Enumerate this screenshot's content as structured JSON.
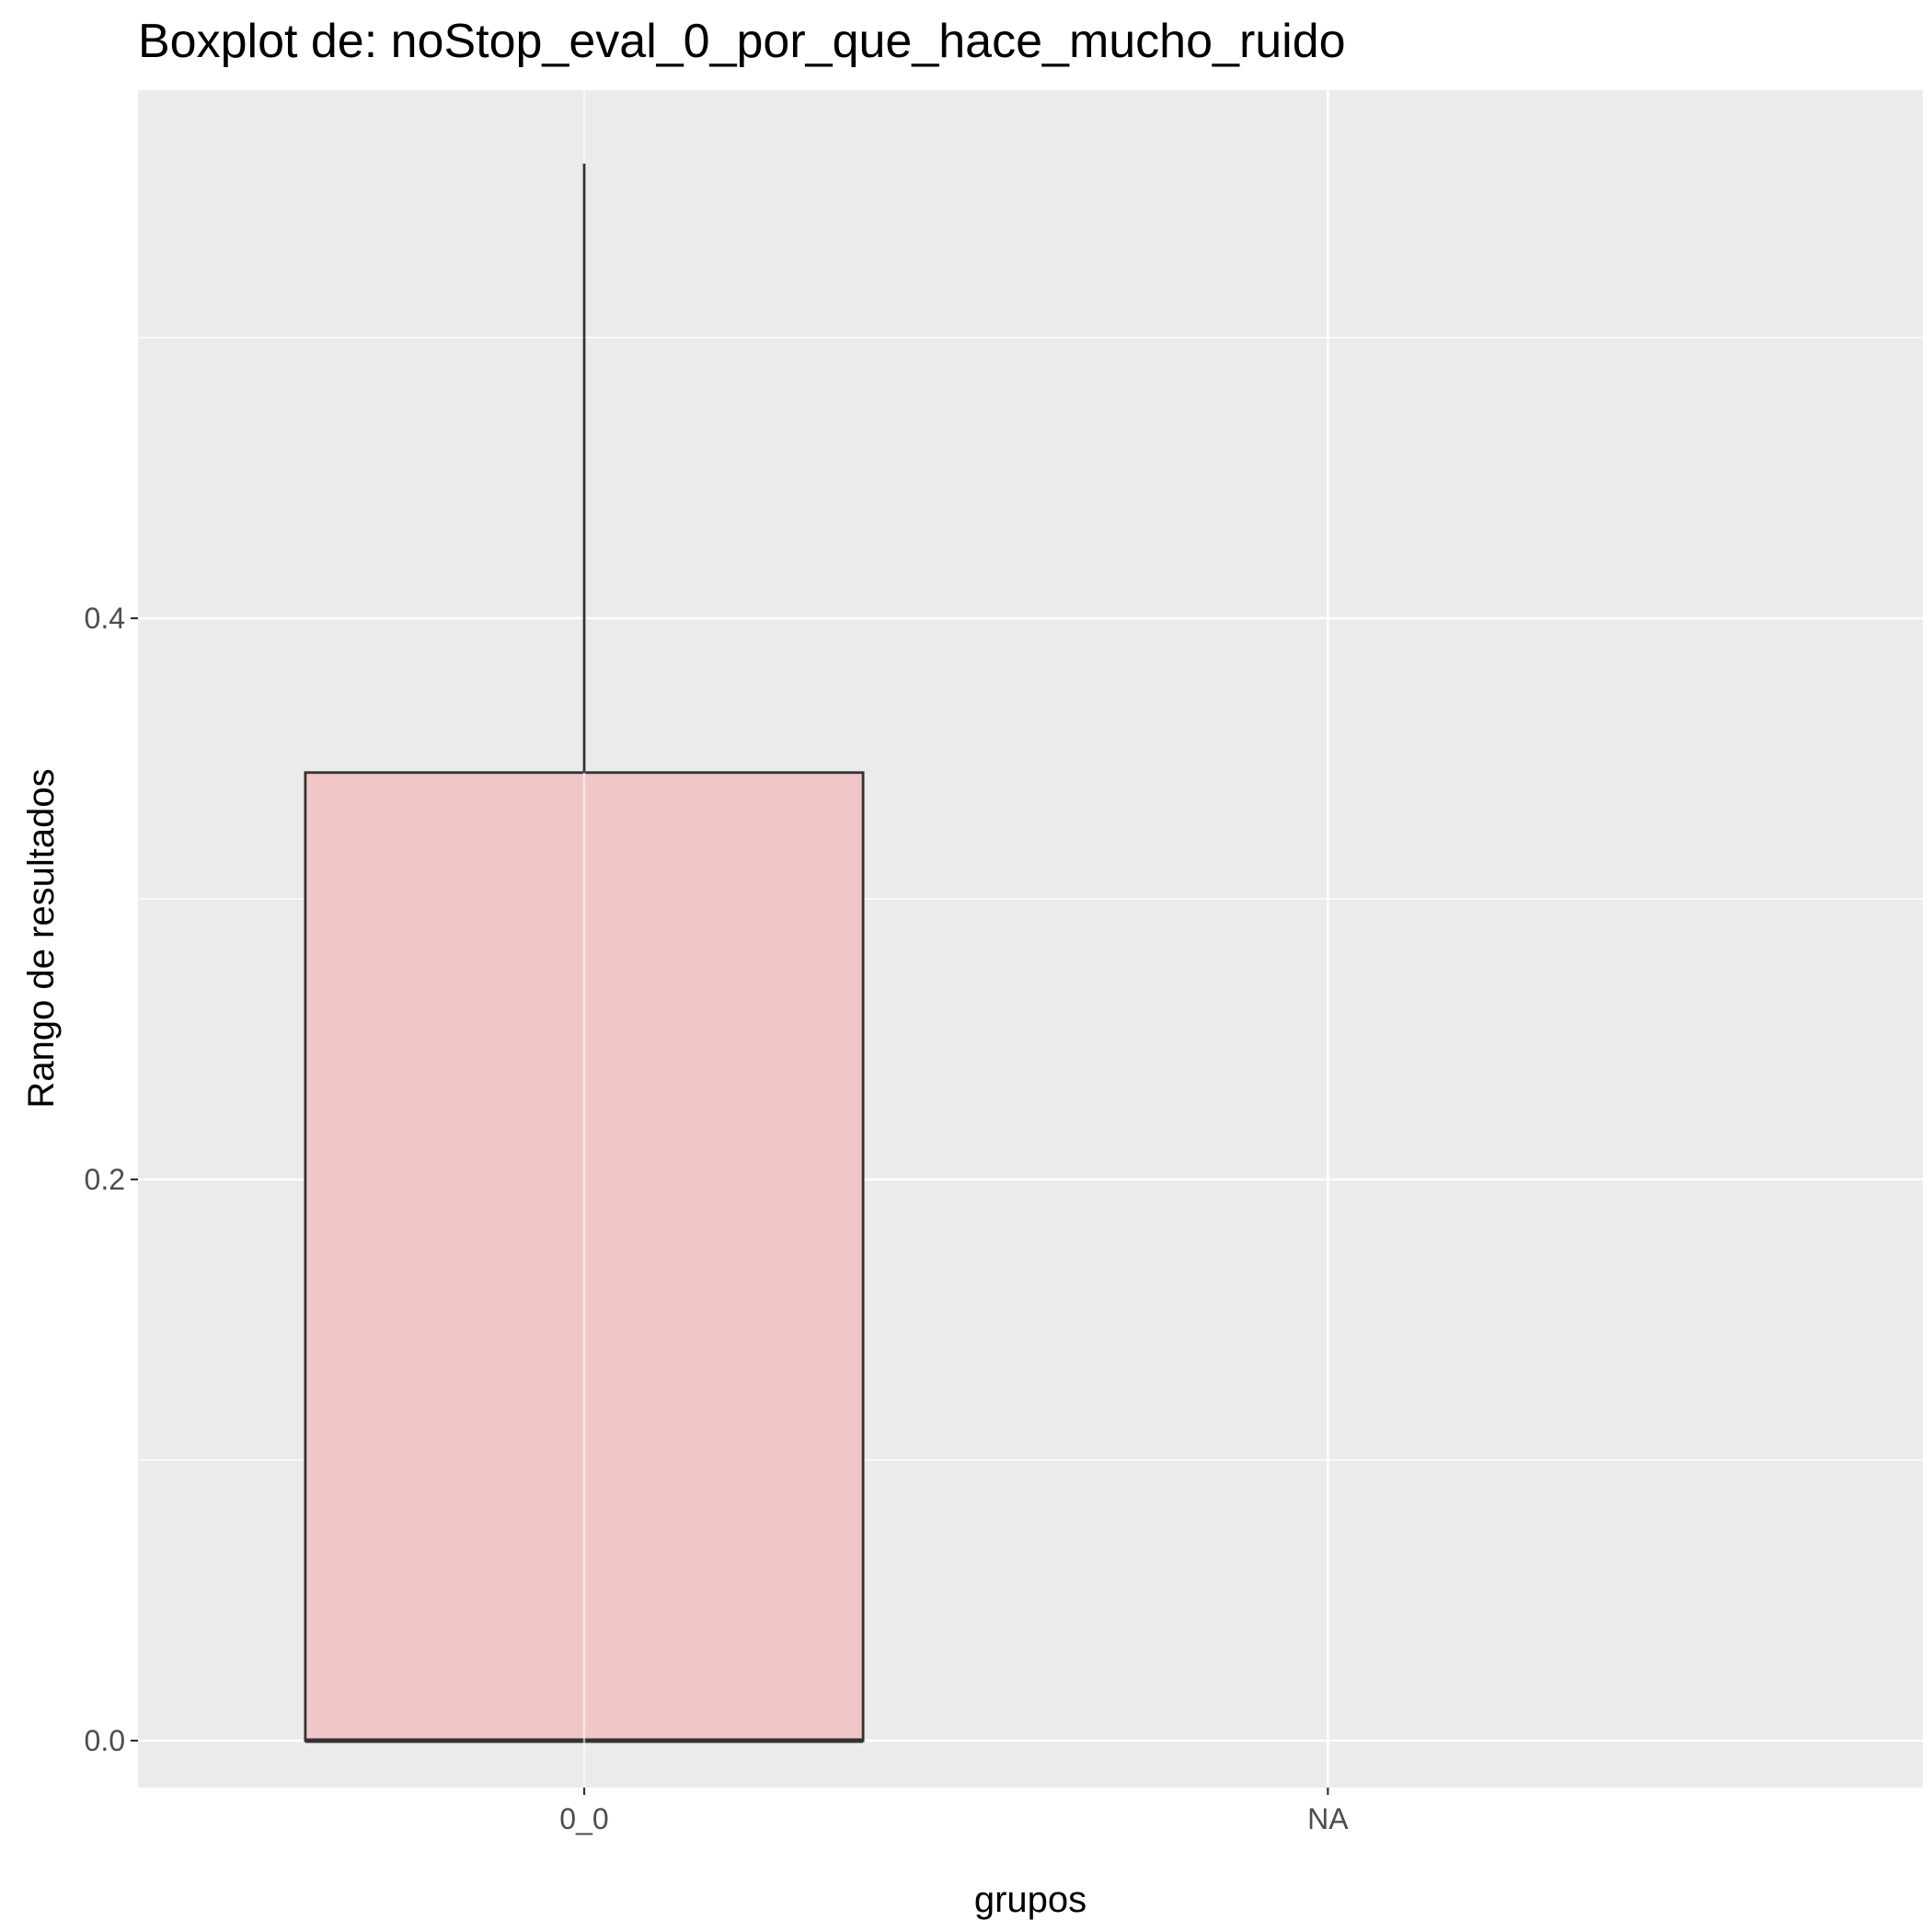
{
  "chart_data": {
    "type": "boxplot",
    "title": "Boxplot de: noStop_eval_0_por_que_hace_mucho_ruido",
    "xlabel": "grupos",
    "ylabel": "Rango de resultados",
    "categories": [
      "0_0",
      "NA"
    ],
    "yticks": [
      {
        "value": 0.0,
        "label": "0.0"
      },
      {
        "value": 0.2,
        "label": "0.2"
      },
      {
        "value": 0.4,
        "label": "0.4"
      }
    ],
    "ylim": [
      -0.025,
      0.6
    ],
    "boxes": [
      {
        "category": "0_0",
        "min": 0.0,
        "q1": 0.0,
        "median": 0.0,
        "q3": 0.345,
        "max": 0.562
      }
    ],
    "grid": true,
    "colors": {
      "panel": "#ebebeb",
      "grid": "#ffffff",
      "box_fill": "#f0c6c6",
      "box_stroke": "#333333",
      "tick": "#333333"
    }
  }
}
